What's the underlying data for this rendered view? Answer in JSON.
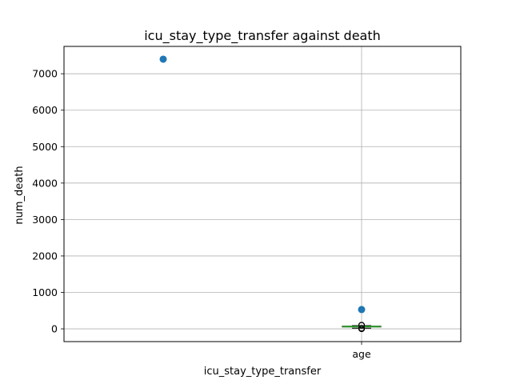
{
  "chart_data": {
    "type": "scatter",
    "title": "icu_stay_type_transfer against death",
    "xlabel": "icu_stay_type_transfer",
    "ylabel": "num_death",
    "ylim": [
      -350,
      7750
    ],
    "yticks": [
      0,
      1000,
      2000,
      3000,
      4000,
      5000,
      6000,
      7000
    ],
    "xtick_labels": [
      "age"
    ],
    "grid": true,
    "colors": {
      "points": "#1f77b4",
      "median": "#2ca02c",
      "box": "#000000",
      "grid": "#b0b0b0"
    },
    "series": [
      {
        "points": [
          {
            "x": 0,
            "y": 7400
          },
          {
            "x": 1,
            "y": 530
          }
        ]
      }
    ],
    "boxplot": {
      "position": 1,
      "label": "age",
      "q1": 52,
      "median": 63,
      "q3": 74,
      "whisker_low": 18,
      "whisker_high": 89,
      "outliers": [
        0,
        2,
        4,
        6,
        8,
        10,
        12,
        14,
        16,
        98,
        100,
        104
      ]
    }
  }
}
